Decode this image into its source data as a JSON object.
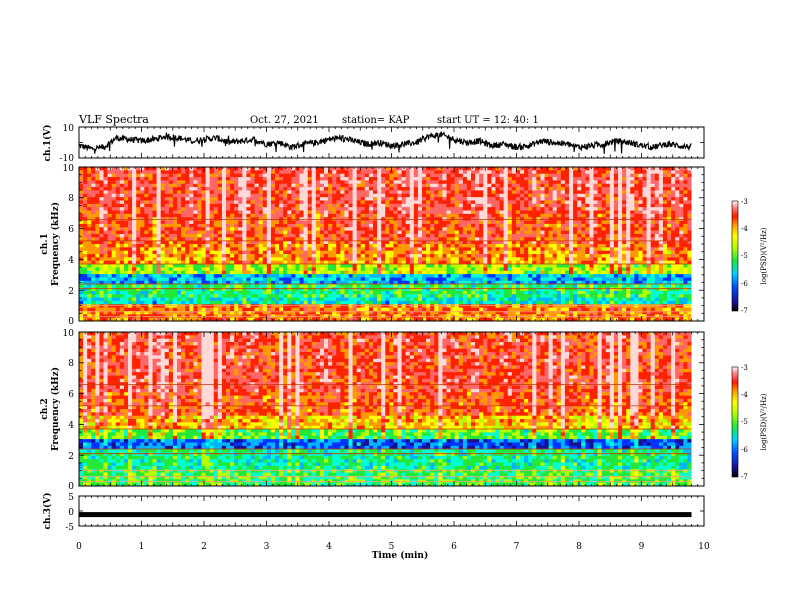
{
  "header": {
    "title": "VLF Spectra",
    "date": "Oct. 27, 2021",
    "station": "station= KAP",
    "start": "start  UT  =   12: 40: 1"
  },
  "chart_data": [
    {
      "type": "line",
      "panel": "ch1-waveform",
      "ylabel": "ch.1(V)",
      "ylim": [
        -10,
        10
      ],
      "yticks": [
        "10",
        "-10"
      ],
      "x": [
        0,
        0.2,
        0.4,
        0.6,
        0.8,
        1.0,
        1.2,
        1.4,
        1.6,
        1.8,
        2.0,
        2.2,
        2.4,
        2.6,
        2.8,
        3.0,
        3.2,
        3.4,
        3.6,
        3.8,
        4.0,
        4.2,
        4.4,
        4.6,
        4.8,
        5.0,
        5.2,
        5.4,
        5.6,
        5.8,
        6.0,
        6.2,
        6.4,
        6.6,
        6.8,
        7.0,
        7.2,
        7.4,
        7.6,
        7.8,
        8.0,
        8.2,
        8.4,
        8.6,
        8.8,
        9.0,
        9.2,
        9.4,
        9.6,
        9.8
      ],
      "values": [
        -2,
        -4,
        -3,
        3,
        2,
        1,
        2,
        4,
        3,
        1,
        2,
        3,
        0,
        1,
        2,
        -1,
        0,
        -3,
        -1,
        0,
        2,
        3,
        1,
        -1,
        0,
        -2,
        -1,
        0,
        4,
        5,
        2,
        0,
        1,
        -2,
        -1,
        -3,
        -2,
        1,
        0,
        -1,
        -3,
        -2,
        -1,
        1,
        0,
        -2,
        -3,
        -1,
        -2,
        -3
      ]
    },
    {
      "type": "heatmap",
      "panel": "ch1-spectrogram",
      "ylabel_line1": "ch.1",
      "ylabel_line2": "Frequency  (kHz)",
      "ylim": [
        0,
        10
      ],
      "yticks": [
        "0",
        "2",
        "4",
        "6",
        "8",
        "10"
      ],
      "freq_bands_khz": [
        0,
        1,
        1.5,
        2.5,
        3,
        3.6,
        4,
        5,
        7,
        10
      ],
      "band_log_psd": [
        -4.2,
        -5.8,
        -5.5,
        -6.1,
        -5.0,
        -4.3,
        -4.2,
        -3.9,
        -3.7
      ],
      "colorbar": {
        "label": "log(PSD)(V²/Hz)",
        "range": [
          -7,
          -3
        ],
        "ticks": [
          "-3",
          "-4",
          "-5",
          "-6",
          "-7"
        ]
      }
    },
    {
      "type": "heatmap",
      "panel": "ch2-spectrogram",
      "ylabel_line1": "ch.2",
      "ylabel_line2": "Frequency  (kHz)",
      "ylim": [
        0,
        10
      ],
      "yticks": [
        "0",
        "2",
        "4",
        "6",
        "8",
        "10"
      ],
      "freq_bands_khz": [
        0,
        1,
        2.4,
        3,
        3.6,
        4.5,
        6,
        10
      ],
      "band_log_psd": [
        -5.4,
        -5.6,
        -6.4,
        -5.3,
        -4.5,
        -4.0,
        -3.8
      ],
      "colorbar": {
        "label": "log(PSD)(V²/Hz)",
        "range": [
          -7,
          -3
        ],
        "ticks": [
          "-3",
          "-4",
          "-5",
          "-6",
          "-7"
        ]
      }
    },
    {
      "type": "line",
      "panel": "ch3-waveform",
      "ylabel": "ch.3(V)",
      "ylim": [
        -5,
        5
      ],
      "yticks": [
        "5",
        "0",
        "-5"
      ],
      "x": [
        0,
        9.8
      ],
      "values": [
        -1.2,
        -1.2
      ]
    }
  ],
  "xaxis": {
    "label": "Time  (min)",
    "xlim": [
      0,
      10
    ],
    "ticks": [
      "0",
      "1",
      "2",
      "3",
      "4",
      "5",
      "6",
      "7",
      "8",
      "9",
      "10"
    ]
  },
  "colormap": [
    "#1a0f8c",
    "#0033ff",
    "#00b4ff",
    "#00ffd2",
    "#22e83a",
    "#b4ff00",
    "#ffff00",
    "#ff9900",
    "#ff2200",
    "#ff6666",
    "#ffd8d8"
  ]
}
